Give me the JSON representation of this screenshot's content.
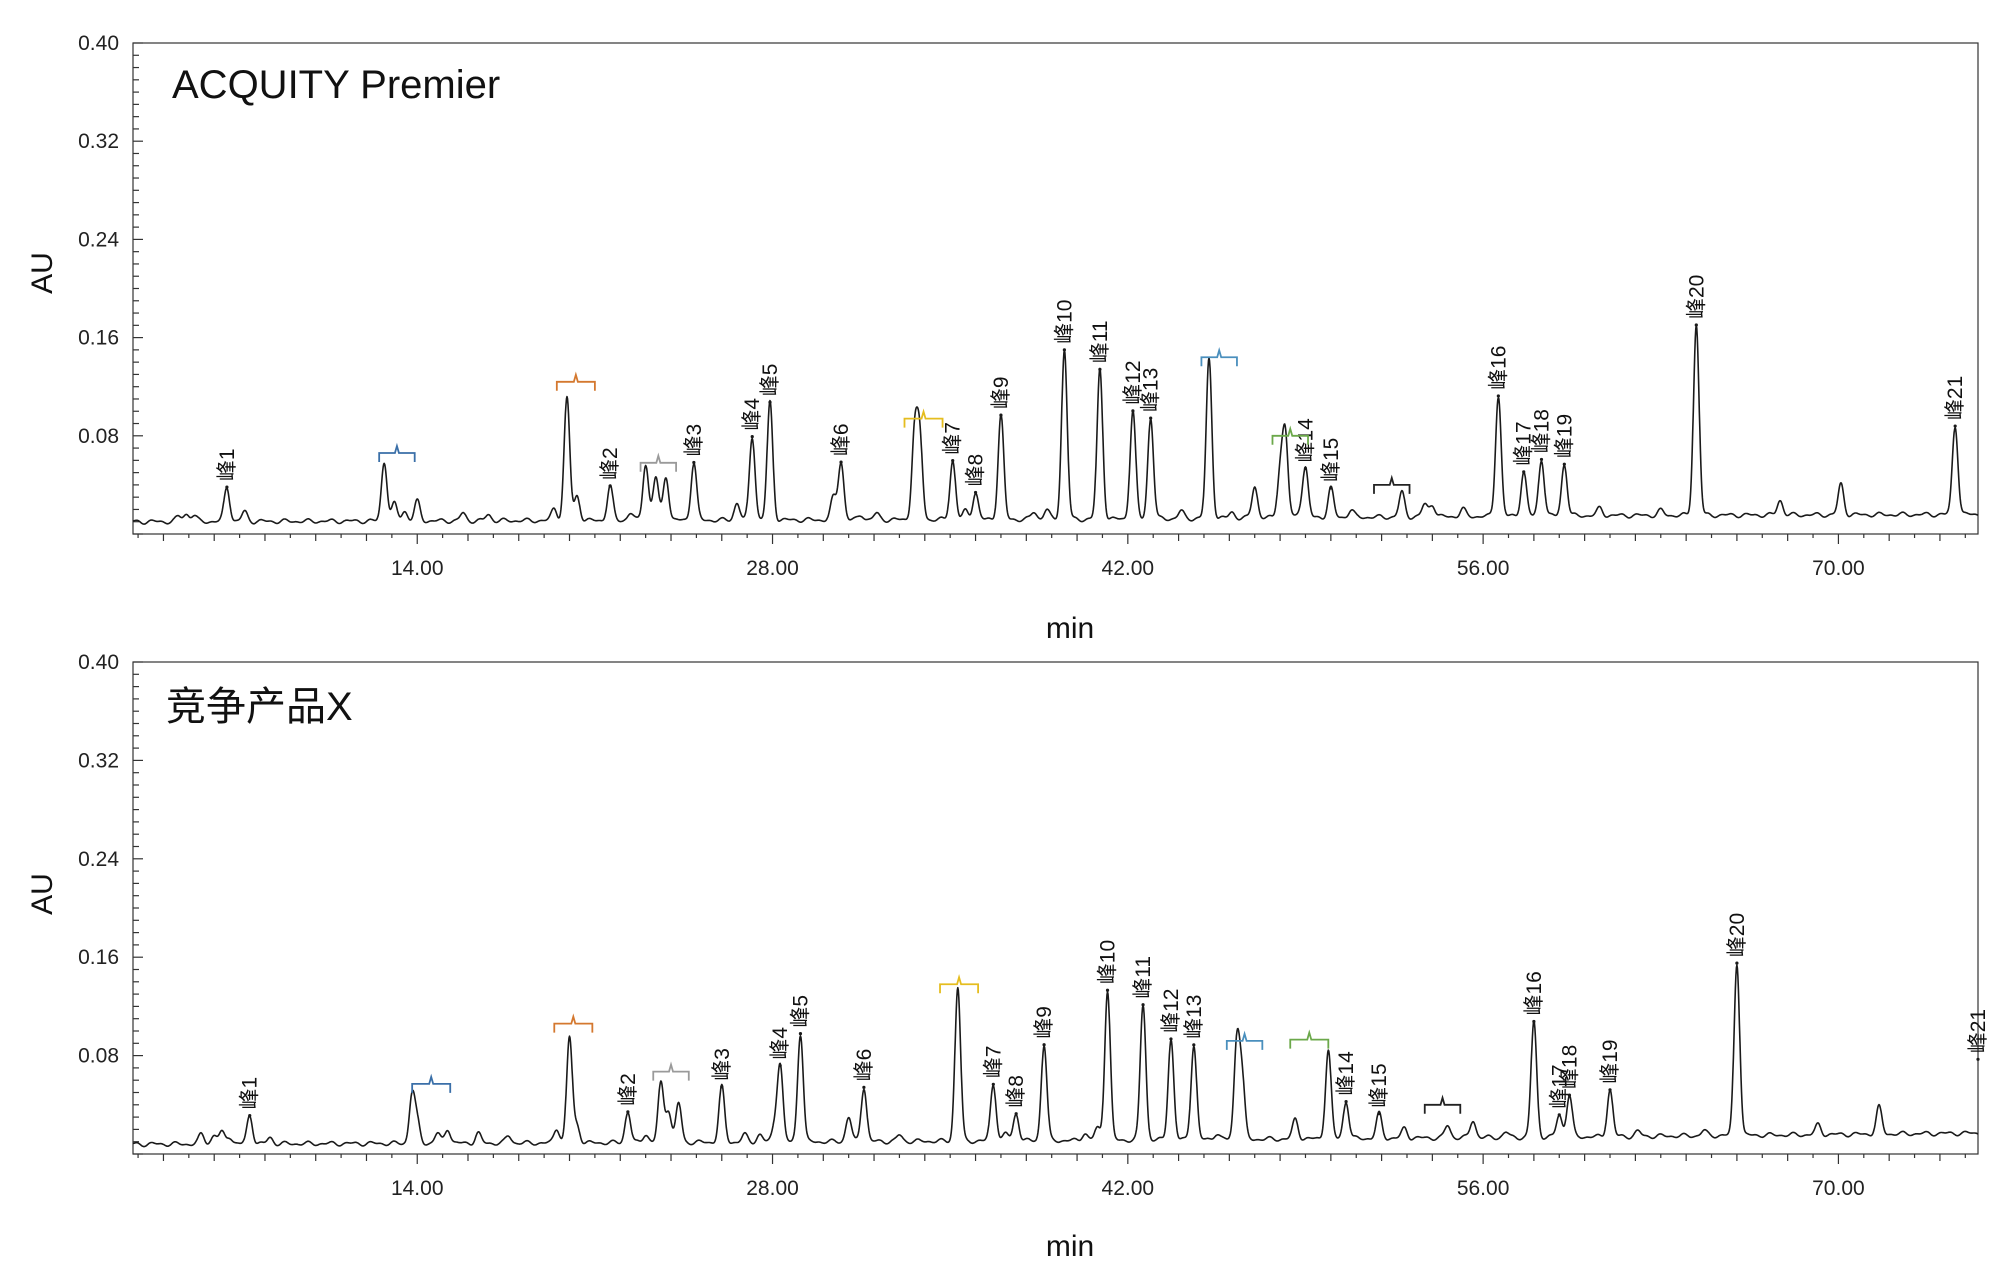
{
  "chart_data": [
    {
      "type": "line",
      "title": "ACQUITY Premier",
      "xlabel": "min",
      "ylabel": "AU",
      "xlim": [
        2.8,
        75.5
      ],
      "ylim": [
        0,
        0.4
      ],
      "xticks": [
        14,
        28,
        42,
        56,
        70
      ],
      "xtick_labels": [
        "14.00",
        "28.00",
        "42.00",
        "56.00",
        "70.00"
      ],
      "yticks": [
        0.08,
        0.16,
        0.24,
        0.32,
        0.4
      ],
      "ytick_labels": [
        "0.08",
        "0.16",
        "0.24",
        "0.32",
        "0.40"
      ],
      "grid": false,
      "baseline": [
        [
          2.8,
          0.01
        ],
        [
          20,
          0.011
        ],
        [
          40,
          0.012
        ],
        [
          60,
          0.015
        ],
        [
          75.5,
          0.016
        ]
      ],
      "peaks": [
        {
          "t": 4.6,
          "h": 0.004
        },
        {
          "t": 4.9,
          "h": 0.006
        },
        {
          "t": 5.2,
          "h": 0.005
        },
        {
          "t": 6.5,
          "h": 0.028,
          "label": "峰1"
        },
        {
          "t": 7.2,
          "h": 0.008
        },
        {
          "t": 12.7,
          "h": 0.048
        },
        {
          "t": 13.1,
          "h": 0.014
        },
        {
          "t": 13.5,
          "h": 0.008
        },
        {
          "t": 14.0,
          "h": 0.016
        },
        {
          "t": 15.8,
          "h": 0.006
        },
        {
          "t": 16.8,
          "h": 0.005
        },
        {
          "t": 19.4,
          "h": 0.01
        },
        {
          "t": 19.9,
          "h": 0.1
        },
        {
          "t": 20.3,
          "h": 0.02
        },
        {
          "t": 21.6,
          "h": 0.028,
          "label": "峰2"
        },
        {
          "t": 22.4,
          "h": 0.006
        },
        {
          "t": 23.0,
          "h": 0.046
        },
        {
          "t": 23.4,
          "h": 0.035
        },
        {
          "t": 23.8,
          "h": 0.036
        },
        {
          "t": 24.9,
          "h": 0.047,
          "label": "峰3"
        },
        {
          "t": 26.6,
          "h": 0.014
        },
        {
          "t": 27.2,
          "h": 0.068,
          "label": "峰4"
        },
        {
          "t": 27.9,
          "h": 0.096,
          "label": "峰5"
        },
        {
          "t": 30.4,
          "h": 0.018
        },
        {
          "t": 30.7,
          "h": 0.047,
          "label": "峰6"
        },
        {
          "t": 31.5,
          "h": 0.004
        },
        {
          "t": 32.1,
          "h": 0.005
        },
        {
          "t": 33.6,
          "h": 0.07
        },
        {
          "t": 33.8,
          "h": 0.066
        },
        {
          "t": 35.1,
          "h": 0.048,
          "label": "峰7"
        },
        {
          "t": 35.6,
          "h": 0.007
        },
        {
          "t": 36.0,
          "h": 0.022,
          "label": "峰8"
        },
        {
          "t": 37.0,
          "h": 0.085,
          "label": "峰9"
        },
        {
          "t": 38.3,
          "h": 0.006
        },
        {
          "t": 38.8,
          "h": 0.008
        },
        {
          "t": 39.5,
          "h": 0.138,
          "label": "峰10"
        },
        {
          "t": 40.9,
          "h": 0.122,
          "label": "峰11"
        },
        {
          "t": 42.2,
          "h": 0.088,
          "label": "峰12"
        },
        {
          "t": 42.9,
          "h": 0.082,
          "label": "峰13"
        },
        {
          "t": 44.1,
          "h": 0.006
        },
        {
          "t": 45.2,
          "h": 0.13
        },
        {
          "t": 46.1,
          "h": 0.005
        },
        {
          "t": 47.0,
          "h": 0.026
        },
        {
          "t": 48.0,
          "h": 0.036
        },
        {
          "t": 48.2,
          "h": 0.068
        },
        {
          "t": 48.8,
          "h": 0.006
        },
        {
          "t": 49.0,
          "h": 0.04,
          "label": "峰14"
        },
        {
          "t": 50.0,
          "h": 0.024,
          "label": "峰15"
        },
        {
          "t": 50.8,
          "h": 0.006
        },
        {
          "t": 52.8,
          "h": 0.02
        },
        {
          "t": 53.7,
          "h": 0.01
        },
        {
          "t": 54.0,
          "h": 0.01
        },
        {
          "t": 55.2,
          "h": 0.006
        },
        {
          "t": 56.6,
          "h": 0.098,
          "label": "峰16"
        },
        {
          "t": 57.6,
          "h": 0.036,
          "label": "峰17"
        },
        {
          "t": 58.3,
          "h": 0.046,
          "label": "峰18"
        },
        {
          "t": 59.2,
          "h": 0.042,
          "label": "峰19"
        },
        {
          "t": 60.6,
          "h": 0.006
        },
        {
          "t": 63.0,
          "h": 0.004
        },
        {
          "t": 64.4,
          "h": 0.155,
          "label": "峰20"
        },
        {
          "t": 67.7,
          "h": 0.012
        },
        {
          "t": 70.1,
          "h": 0.025
        },
        {
          "t": 74.6,
          "h": 0.072,
          "label": "峰21"
        }
      ],
      "brackets": [
        {
          "x0": 12.5,
          "x1": 13.9,
          "y": 0.066,
          "color": "#3a6fa8"
        },
        {
          "x0": 19.5,
          "x1": 21.0,
          "y": 0.124,
          "color": "#d4782f"
        },
        {
          "x0": 22.8,
          "x1": 24.2,
          "y": 0.058,
          "color": "#9a9a9a"
        },
        {
          "x0": 33.2,
          "x1": 34.7,
          "y": 0.094,
          "color": "#e5bd1f"
        },
        {
          "x0": 44.9,
          "x1": 46.3,
          "y": 0.144,
          "color": "#4a8fbd"
        },
        {
          "x0": 47.7,
          "x1": 49.1,
          "y": 0.08,
          "color": "#6ba84a"
        },
        {
          "x0": 51.7,
          "x1": 53.1,
          "y": 0.04,
          "color": "#222222"
        }
      ]
    },
    {
      "type": "line",
      "title": "竞争产品X",
      "xlabel": "min",
      "ylabel": "AU",
      "xlim": [
        2.8,
        75.5
      ],
      "ylim": [
        0,
        0.4
      ],
      "xticks": [
        14,
        28,
        42,
        56,
        70
      ],
      "xtick_labels": [
        "14.00",
        "28.00",
        "42.00",
        "56.00",
        "70.00"
      ],
      "yticks": [
        0.08,
        0.16,
        0.24,
        0.32,
        0.4
      ],
      "ytick_labels": [
        "0.08",
        "0.16",
        "0.24",
        "0.32",
        "0.40"
      ],
      "grid": false,
      "baseline": [
        [
          2.8,
          0.008
        ],
        [
          20,
          0.009
        ],
        [
          40,
          0.011
        ],
        [
          60,
          0.014
        ],
        [
          75.5,
          0.017
        ]
      ],
      "peaks": [
        {
          "t": 5.5,
          "h": 0.008
        },
        {
          "t": 6.0,
          "h": 0.007
        },
        {
          "t": 6.3,
          "h": 0.009
        },
        {
          "t": 6.6,
          "h": 0.006
        },
        {
          "t": 7.4,
          "h": 0.023,
          "label": "峰1"
        },
        {
          "t": 8.2,
          "h": 0.005
        },
        {
          "t": 13.8,
          "h": 0.04
        },
        {
          "t": 14.0,
          "h": 0.016
        },
        {
          "t": 14.8,
          "h": 0.008
        },
        {
          "t": 15.2,
          "h": 0.012
        },
        {
          "t": 16.4,
          "h": 0.008
        },
        {
          "t": 17.6,
          "h": 0.006
        },
        {
          "t": 19.5,
          "h": 0.012
        },
        {
          "t": 20.0,
          "h": 0.086
        },
        {
          "t": 20.3,
          "h": 0.014
        },
        {
          "t": 22.3,
          "h": 0.025,
          "label": "峰2"
        },
        {
          "t": 23.0,
          "h": 0.007
        },
        {
          "t": 23.6,
          "h": 0.048
        },
        {
          "t": 23.9,
          "h": 0.026
        },
        {
          "t": 24.3,
          "h": 0.032
        },
        {
          "t": 26.0,
          "h": 0.045,
          "label": "峰3"
        },
        {
          "t": 26.9,
          "h": 0.006
        },
        {
          "t": 27.5,
          "h": 0.006
        },
        {
          "t": 28.1,
          "h": 0.014
        },
        {
          "t": 28.3,
          "h": 0.062,
          "label": "峰4"
        },
        {
          "t": 29.1,
          "h": 0.088,
          "label": "峰5"
        },
        {
          "t": 31.0,
          "h": 0.02
        },
        {
          "t": 31.6,
          "h": 0.044,
          "label": "峰6"
        },
        {
          "t": 33.0,
          "h": 0.005
        },
        {
          "t": 35.3,
          "h": 0.125
        },
        {
          "t": 36.7,
          "h": 0.046,
          "label": "峰7"
        },
        {
          "t": 37.2,
          "h": 0.006
        },
        {
          "t": 37.6,
          "h": 0.022,
          "label": "峰8"
        },
        {
          "t": 38.7,
          "h": 0.078,
          "label": "峰9"
        },
        {
          "t": 40.3,
          "h": 0.006
        },
        {
          "t": 40.8,
          "h": 0.01
        },
        {
          "t": 41.2,
          "h": 0.122,
          "label": "峰10"
        },
        {
          "t": 42.6,
          "h": 0.11,
          "label": "峰11"
        },
        {
          "t": 43.7,
          "h": 0.082,
          "label": "峰12"
        },
        {
          "t": 44.6,
          "h": 0.077,
          "label": "峰13"
        },
        {
          "t": 45.5,
          "h": 0.005
        },
        {
          "t": 46.3,
          "h": 0.08
        },
        {
          "t": 46.5,
          "h": 0.048
        },
        {
          "t": 48.6,
          "h": 0.016
        },
        {
          "t": 49.9,
          "h": 0.072
        },
        {
          "t": 50.6,
          "h": 0.03,
          "label": "峰14"
        },
        {
          "t": 51.9,
          "h": 0.02,
          "label": "峰15"
        },
        {
          "t": 52.9,
          "h": 0.008
        },
        {
          "t": 54.6,
          "h": 0.01
        },
        {
          "t": 55.6,
          "h": 0.014
        },
        {
          "t": 56.9,
          "h": 0.004
        },
        {
          "t": 58.0,
          "h": 0.094,
          "label": "峰16"
        },
        {
          "t": 59.0,
          "h": 0.018,
          "label": "峰17"
        },
        {
          "t": 59.4,
          "h": 0.034,
          "label": "峰18"
        },
        {
          "t": 61.0,
          "h": 0.038,
          "label": "峰19"
        },
        {
          "t": 62.1,
          "h": 0.004
        },
        {
          "t": 64.7,
          "h": 0.004
        },
        {
          "t": 66.0,
          "h": 0.14,
          "label": "峰20"
        },
        {
          "t": 69.2,
          "h": 0.008
        },
        {
          "t": 71.6,
          "h": 0.022
        },
        {
          "t": 76.0,
          "h": 0.06,
          "label": "峰21"
        }
      ],
      "brackets": [
        {
          "x0": 13.8,
          "x1": 15.3,
          "y": 0.057,
          "color": "#3a6fa8"
        },
        {
          "x0": 19.4,
          "x1": 20.9,
          "y": 0.106,
          "color": "#d4782f"
        },
        {
          "x0": 23.3,
          "x1": 24.7,
          "y": 0.067,
          "color": "#9a9a9a"
        },
        {
          "x0": 34.6,
          "x1": 36.1,
          "y": 0.138,
          "color": "#e5bd1f"
        },
        {
          "x0": 45.9,
          "x1": 47.3,
          "y": 0.092,
          "color": "#4a8fbd"
        },
        {
          "x0": 48.4,
          "x1": 49.9,
          "y": 0.093,
          "color": "#6ba84a"
        },
        {
          "x0": 53.7,
          "x1": 55.1,
          "y": 0.04,
          "color": "#222222"
        }
      ]
    }
  ]
}
